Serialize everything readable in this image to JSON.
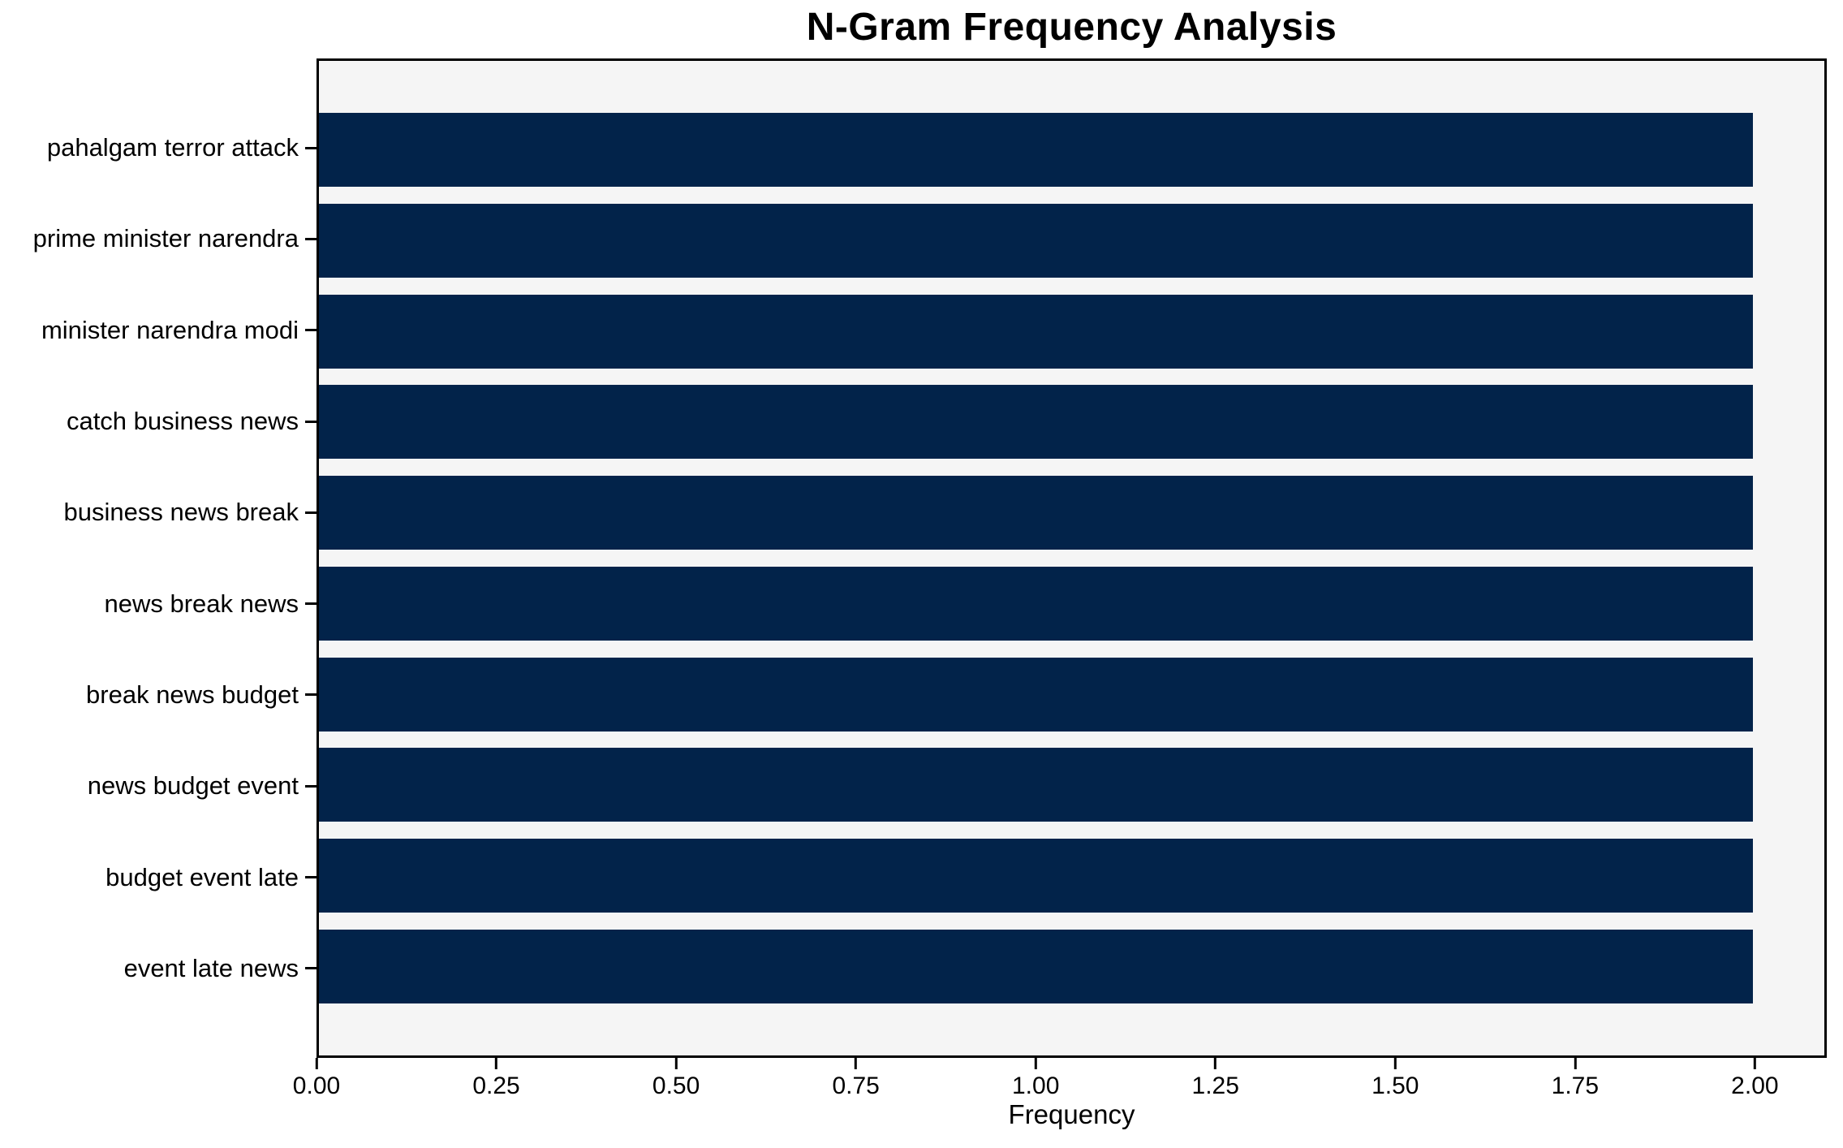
{
  "title": "N-Gram Frequency Analysis",
  "axes": {
    "x_label": "Frequency",
    "x_tick_labels": [
      "0.00",
      "0.25",
      "0.50",
      "0.75",
      "1.00",
      "1.25",
      "1.50",
      "1.75",
      "2.00"
    ]
  },
  "colors": {
    "bar": "#02234a",
    "plot_background": "#f5f5f5",
    "figure_background": "#ffffff",
    "axis_line": "#000000",
    "text": "#000000"
  },
  "chart_data": {
    "type": "bar",
    "orientation": "horizontal",
    "title": "N-Gram Frequency Analysis",
    "xlabel": "Frequency",
    "ylabel": "",
    "categories": [
      "pahalgam terror attack",
      "prime minister narendra",
      "minister narendra modi",
      "catch business news",
      "business news break",
      "news break news",
      "break news budget",
      "news budget event",
      "budget event late",
      "event late news"
    ],
    "values": [
      2,
      2,
      2,
      2,
      2,
      2,
      2,
      2,
      2,
      2
    ],
    "xlim": [
      0,
      2.1
    ],
    "xtick_values": [
      0,
      0.25,
      0.5,
      0.75,
      1.0,
      1.25,
      1.5,
      1.75,
      2.0
    ],
    "xtick_labels": [
      "0.00",
      "0.25",
      "0.50",
      "0.75",
      "1.00",
      "1.25",
      "1.50",
      "1.75",
      "2.00"
    ],
    "grid": false,
    "legend": null,
    "bar_color": "#02234a"
  }
}
